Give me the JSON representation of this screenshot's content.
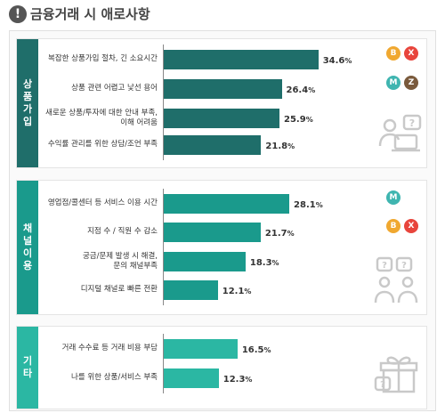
{
  "page": {
    "title_icon": "!",
    "title": "금융거래 시 애로사항"
  },
  "colors": {
    "dark_teal": "#1f6e6a",
    "mid_teal": "#1a9a8c",
    "light_teal": "#2bb7a3",
    "badge_orange": "#f0a830",
    "badge_red": "#e8453c",
    "badge_teal": "#3fb5b0",
    "badge_brown": "#7a5a3c"
  },
  "chart_data": [
    {
      "type": "bar",
      "orientation": "horizontal",
      "group": "상품가입",
      "categories": [
        "복잡한 상품가입 절차, 긴 소요시간",
        "상품 관련 어렵고 낯선 용어",
        "새로운 상품/투자에 대한 안내 부족,\n이해 어려움",
        "수익률 관리를 위한 상담/조언 부족"
      ],
      "values": [
        34.6,
        26.4,
        25.9,
        21.8
      ],
      "value_labels": [
        "34.6",
        "26.4",
        "25.9",
        "21.8"
      ],
      "unit": "%",
      "badges": [
        [
          {
            "letter": "B",
            "color": "orange"
          },
          {
            "letter": "X",
            "color": "red"
          }
        ],
        [
          {
            "letter": "M",
            "color": "teal"
          },
          {
            "letter": "Z",
            "color": "brown"
          }
        ],
        [],
        []
      ],
      "illustration": "person-laptop-question-icon"
    },
    {
      "type": "bar",
      "orientation": "horizontal",
      "group": "채널이용",
      "categories": [
        "영업점/콜센터 등 서비스 이용 시간",
        "지점 수 / 직원 수 감소",
        "궁금/문제 발생 시 해결,\n문의 채널부족",
        "디지털 채널로 빠른 전환"
      ],
      "values": [
        28.1,
        21.7,
        18.3,
        12.1
      ],
      "value_labels": [
        "28.1",
        "21.7",
        "18.3",
        "12.1"
      ],
      "unit": "%",
      "badges": [
        [
          {
            "letter": "M",
            "color": "teal"
          }
        ],
        [
          {
            "letter": "B",
            "color": "orange"
          },
          {
            "letter": "X",
            "color": "red"
          }
        ],
        [],
        []
      ],
      "illustration": "two-people-question-icon"
    },
    {
      "type": "bar",
      "orientation": "horizontal",
      "group": "기타",
      "categories": [
        "거래 수수료 등 거래 비용 부담",
        "나를 위한 상품/서비스 부족"
      ],
      "values": [
        16.5,
        12.3
      ],
      "value_labels": [
        "16.5",
        "12.3"
      ],
      "unit": "%",
      "badges": [
        [],
        []
      ],
      "illustration": "gift-box-question-icon"
    }
  ]
}
